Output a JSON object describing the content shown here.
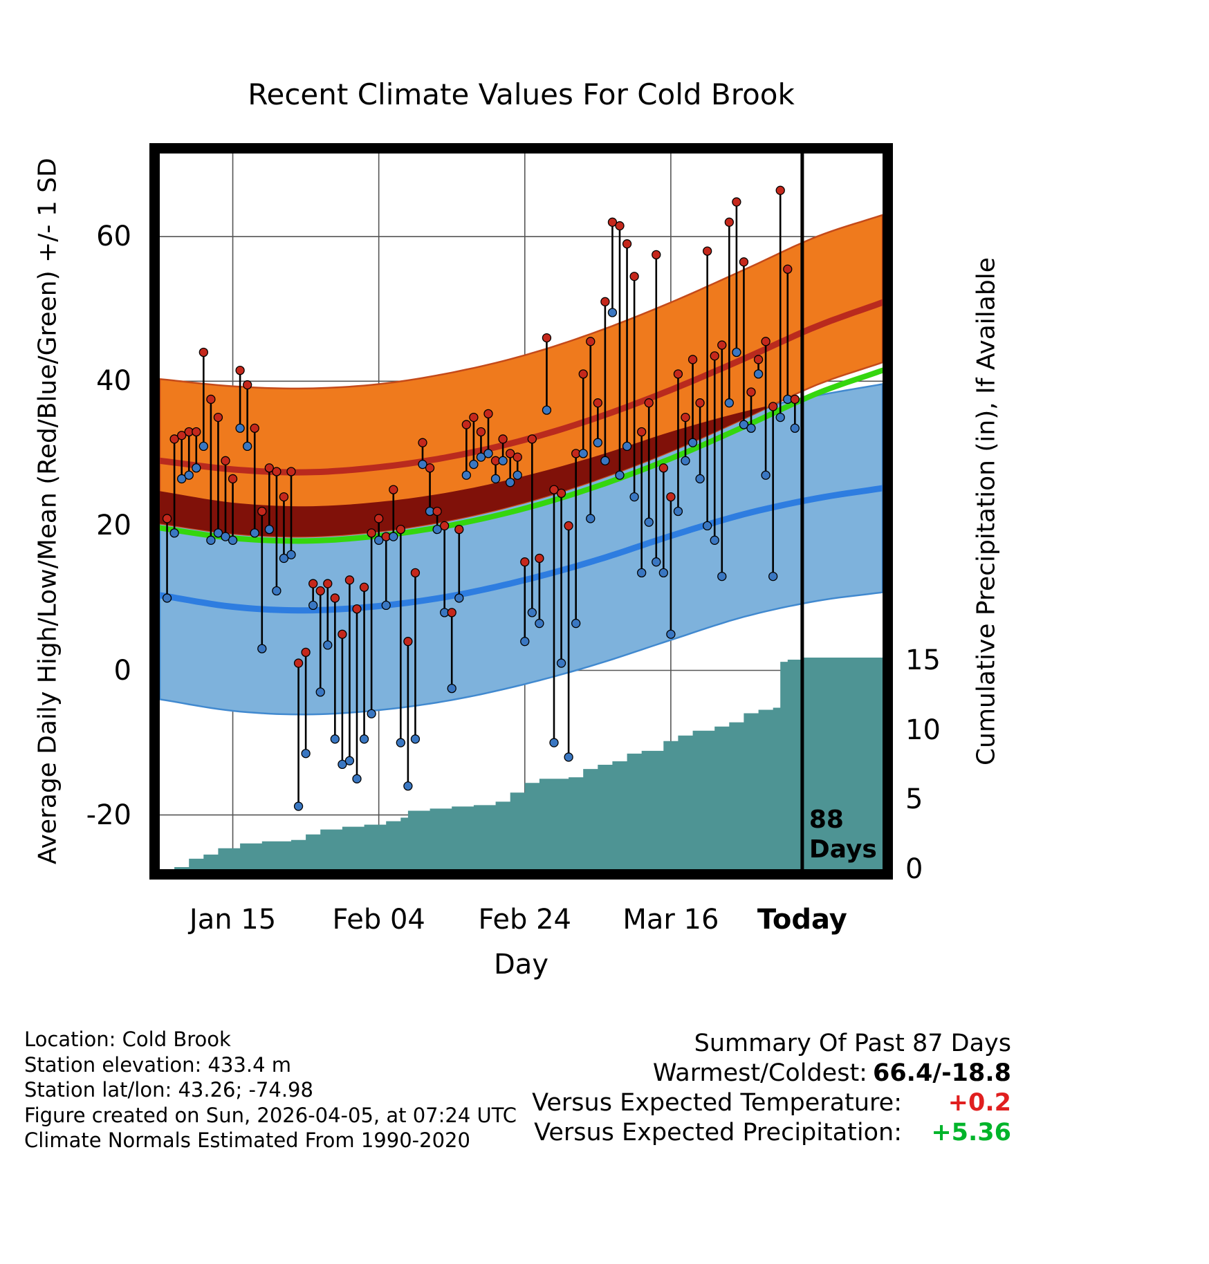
{
  "colors": {
    "high_band": "#ef7a1d",
    "high_band_edge": "#c44a1a",
    "high_mean_line": "#b92a1e",
    "low_band": "#7eb2dc",
    "low_band_edge": "#4189cf",
    "low_mean_line": "#2e7de0",
    "overlap_band": "#801109",
    "mean_line": "#35d60e",
    "precip_fill": "#4e9494",
    "daily_bar": "#000000",
    "high_dot": "#c5281c",
    "low_dot": "#3a77c2",
    "grid": "#555555",
    "today_line": "#000000"
  },
  "chart_data": {
    "type": "line",
    "title": "Recent Climate Values For Cold Brook",
    "xlabel": "Day",
    "ylabel_left": "Average Daily High/Low/Mean (Red/Blue/Green) +/- 1 SD",
    "ylabel_right": "Cumulative Precipitation (in), If Available",
    "temp_axis_range": [
      -27.5,
      71.5
    ],
    "day_range": [
      0,
      99
    ],
    "y_ticks_left": [
      -20,
      0,
      20,
      40,
      60
    ],
    "y_ticks_right": [
      0,
      5,
      10,
      15
    ],
    "x_ticks": [
      {
        "label": "Jan 15",
        "day": 10,
        "bold": false
      },
      {
        "label": "Feb 04",
        "day": 30,
        "bold": false
      },
      {
        "label": "Feb 24",
        "day": 50,
        "bold": false
      },
      {
        "label": "Mar 16",
        "day": 70,
        "bold": false
      },
      {
        "label": "Today",
        "day": 88,
        "bold": true
      }
    ],
    "today": {
      "day": 88,
      "label_lines": [
        "88",
        "Days"
      ]
    },
    "normals": {
      "days": [
        0,
        10,
        20,
        30,
        40,
        50,
        60,
        70,
        80,
        90,
        99
      ],
      "high_upper": [
        40.3,
        39.3,
        39.0,
        39.6,
        41.2,
        43.6,
        46.9,
        50.9,
        55.4,
        60.0,
        63.0
      ],
      "high_mean": [
        29.0,
        27.8,
        27.4,
        28.1,
        29.6,
        31.9,
        35.0,
        38.8,
        43.1,
        47.6,
        50.9
      ],
      "high_lower": [
        20.3,
        18.9,
        18.5,
        19.2,
        20.8,
        23.2,
        26.4,
        30.3,
        34.8,
        39.5,
        42.6
      ],
      "mean": [
        19.7,
        18.3,
        17.9,
        18.6,
        20.1,
        22.4,
        25.5,
        29.3,
        33.7,
        38.3,
        41.5
      ],
      "low_upper": [
        24.8,
        23.2,
        22.7,
        23.3,
        24.7,
        26.9,
        29.7,
        33.0,
        35.8,
        38.0,
        39.6
      ],
      "low_mean": [
        10.4,
        8.8,
        8.3,
        8.9,
        10.3,
        12.5,
        15.3,
        18.6,
        21.6,
        23.8,
        25.2
      ],
      "low_lower": [
        -4.0,
        -5.6,
        -6.1,
        -5.5,
        -4.1,
        -1.9,
        0.9,
        4.2,
        7.4,
        9.6,
        10.8
      ]
    },
    "daily": {
      "start_day": 1,
      "high": [
        21,
        32,
        32.5,
        33,
        33,
        44,
        37.5,
        35,
        29,
        26.5,
        41.5,
        39.5,
        33.5,
        22,
        28,
        27.5,
        24,
        27.5,
        1,
        2.5,
        12,
        11,
        12,
        10,
        5,
        12.5,
        8.5,
        11.5,
        19,
        21,
        18.5,
        25,
        19.5,
        4,
        13.5,
        31.5,
        28,
        22,
        20,
        8,
        19.5,
        34,
        35,
        33,
        35.5,
        29,
        32,
        30,
        29.5,
        15,
        32,
        15.5,
        46,
        25,
        24.5,
        20,
        30,
        41,
        45.5,
        37,
        51,
        62,
        61.5,
        59,
        54.5,
        33,
        37,
        57.5,
        28,
        24,
        41,
        35,
        43,
        37,
        58,
        43.5,
        45,
        62,
        64.8,
        56.5,
        38.5,
        43,
        45.5,
        36.5,
        66.4,
        55.5,
        37.5
      ],
      "low": [
        10,
        19,
        26.5,
        27,
        28,
        31,
        18,
        19,
        18.5,
        18,
        33.5,
        31,
        19,
        3,
        19.5,
        11,
        15.5,
        16,
        -18.8,
        -11.5,
        9,
        -3,
        3.5,
        -9.5,
        -13,
        -12.5,
        -15,
        -9.5,
        -6,
        18,
        9,
        18.5,
        -10,
        -16,
        -9.5,
        28.5,
        22,
        19.5,
        8,
        -2.5,
        10,
        27,
        28.5,
        29.5,
        30,
        26.5,
        29,
        26,
        27,
        4,
        8,
        6.5,
        36,
        -10,
        1,
        -12,
        6.5,
        30,
        21,
        31.5,
        29,
        49.5,
        27,
        31,
        24,
        13.5,
        20.5,
        15,
        13.5,
        5,
        22,
        29,
        31.5,
        26.5,
        20,
        18,
        13,
        37,
        44,
        34,
        33.5,
        41,
        27,
        13,
        35,
        37.5,
        33.5
      ]
    },
    "precip_cumulative": {
      "days": [
        0,
        2,
        4,
        6,
        8,
        11,
        14,
        18,
        20,
        22,
        25,
        28,
        31,
        33,
        34,
        37,
        40,
        43,
        46,
        48,
        50,
        52,
        56,
        58,
        60,
        62,
        64,
        66,
        69,
        71,
        73,
        76,
        78,
        80,
        82,
        84,
        85,
        86,
        88,
        99
      ],
      "values": [
        0,
        0.15,
        0.75,
        1.05,
        1.5,
        1.85,
        2.0,
        2.1,
        2.5,
        2.85,
        3.05,
        3.2,
        3.45,
        3.7,
        4.2,
        4.35,
        4.5,
        4.6,
        4.85,
        5.5,
        6.2,
        6.5,
        6.6,
        7.2,
        7.5,
        7.75,
        8.3,
        8.5,
        9.2,
        9.6,
        9.95,
        10.25,
        10.55,
        11.2,
        11.45,
        11.6,
        14.9,
        15.05,
        15.2,
        15.3
      ]
    }
  },
  "footer": {
    "lines": [
      "Location: Cold Brook",
      "Station elevation: 433.4 m",
      "Station lat/lon: 43.26; -74.98",
      "Figure created on Sun, 2026-04-05, at 07:24 UTC",
      "Climate Normals Estimated From 1990-2020"
    ]
  },
  "summary": {
    "title": "Summary Of Past 87 Days",
    "rows": [
      {
        "label": "Warmest/Coldest:",
        "value": "66.4/-18.8",
        "value_color": "#000000"
      },
      {
        "label": "Versus Expected Temperature:",
        "value": "+0.2",
        "value_color": "#e01f1f"
      },
      {
        "label": "Versus Expected Precipitation:",
        "value": "+5.36",
        "value_color": "#00b42a"
      }
    ]
  }
}
